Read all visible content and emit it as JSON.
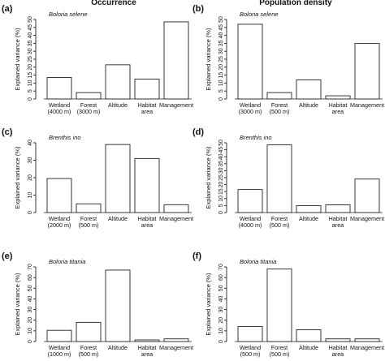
{
  "headers": {
    "occurrence": "Occurrence",
    "population_density": "Population density"
  },
  "chart_data": [
    {
      "panel": "(a)",
      "type": "bar",
      "subtitle": "Boloria selene",
      "ylabel": "Explained variance (%)",
      "ylim": [
        0,
        50
      ],
      "yticks": [
        0,
        5,
        10,
        15,
        20,
        25,
        30,
        35,
        40,
        45,
        50
      ],
      "categories": [
        [
          "Wetland",
          "(4000 m)"
        ],
        [
          "Forest",
          "(3000 m)"
        ],
        [
          "Altitude"
        ],
        [
          "Habitat",
          "area"
        ],
        [
          "Management"
        ]
      ],
      "values": [
        13.5,
        4,
        21.5,
        12.5,
        48.5
      ]
    },
    {
      "panel": "(b)",
      "type": "bar",
      "subtitle": "Boloria selene",
      "ylabel": "Explained variance (%)",
      "ylim": [
        0,
        50
      ],
      "yticks": [
        0,
        5,
        10,
        15,
        20,
        25,
        30,
        35,
        40,
        45,
        50
      ],
      "categories": [
        [
          "Wetland",
          "(3000 m)"
        ],
        [
          "Forest",
          "(500 m)"
        ],
        [
          "Altitude"
        ],
        [
          "Habitat",
          "area"
        ],
        [
          "Management"
        ]
      ],
      "values": [
        47,
        4,
        12,
        2,
        35
      ]
    },
    {
      "panel": "(c)",
      "type": "bar",
      "subtitle": "Brenthis ino",
      "ylabel": "Explained variance (%)",
      "ylim": [
        0,
        40
      ],
      "yticks": [
        0,
        10,
        20,
        30,
        40
      ],
      "categories": [
        [
          "Wetland",
          "(2000 m)"
        ],
        [
          "Forest",
          "(500 m)"
        ],
        [
          "Altitude"
        ],
        [
          "Habitat",
          "area"
        ],
        [
          "Management"
        ]
      ],
      "values": [
        19.5,
        5,
        39,
        31,
        4.5
      ]
    },
    {
      "panel": "(d)",
      "type": "bar",
      "subtitle": "Brenthis ino",
      "ylabel": "Explained variance (%)",
      "ylim": [
        0,
        50
      ],
      "yticks": [
        0,
        5,
        10,
        15,
        20,
        25,
        30,
        35,
        40,
        45,
        50
      ],
      "categories": [
        [
          "Wetland",
          "(4000 m)"
        ],
        [
          "Forest",
          "(500 m)"
        ],
        [
          "Altitude"
        ],
        [
          "Habitat",
          "area"
        ],
        [
          "Management"
        ]
      ],
      "values": [
        16.5,
        48.5,
        5,
        5.5,
        24
      ]
    },
    {
      "panel": "(e)",
      "type": "bar",
      "subtitle": "Boloria titania",
      "ylabel": "Explained variance (%)",
      "ylim": [
        0,
        70
      ],
      "yticks": [
        0,
        10,
        20,
        30,
        40,
        50,
        60,
        70
      ],
      "categories": [
        [
          "Wetland",
          "(1000 m)"
        ],
        [
          "Forest",
          "(500 m)"
        ],
        [
          "Altitude"
        ],
        [
          "Habitat",
          "area"
        ],
        [
          "Management"
        ]
      ],
      "values": [
        10.5,
        18,
        67,
        1.5,
        2.5
      ]
    },
    {
      "panel": "(f)",
      "type": "bar",
      "subtitle": "Boloria titania",
      "ylabel": "Explained variance (%)",
      "ylim": [
        0,
        70
      ],
      "yticks": [
        0,
        10,
        20,
        30,
        40,
        50,
        60,
        70
      ],
      "categories": [
        [
          "Wetland",
          "(500 m)"
        ],
        [
          "Forest",
          "(500 m)"
        ],
        [
          "Altitude"
        ],
        [
          "Habitat",
          "area"
        ],
        [
          "Management"
        ]
      ],
      "values": [
        14,
        68,
        11,
        2.5,
        2.5
      ]
    }
  ]
}
